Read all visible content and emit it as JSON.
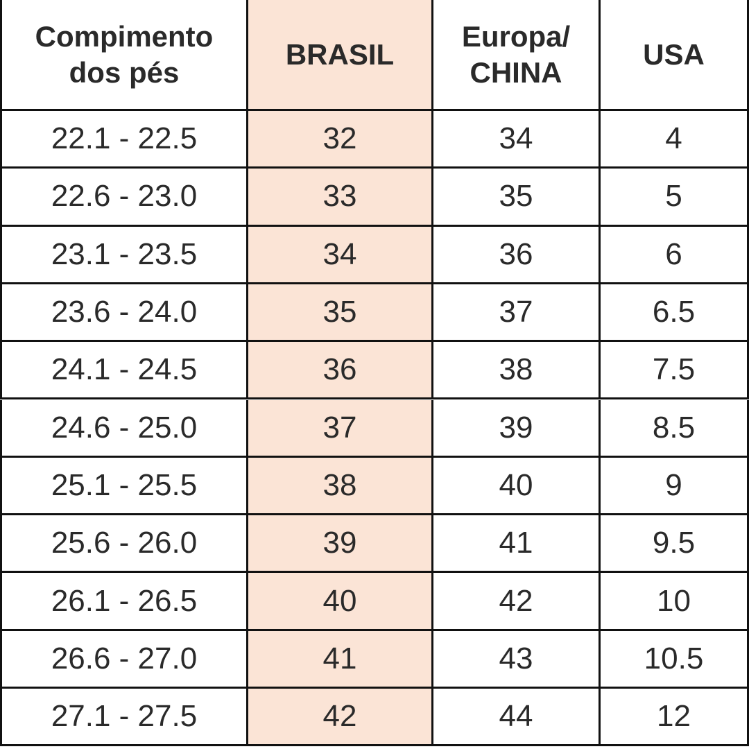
{
  "table": {
    "header": [
      [
        "Compimento",
        "dos pés"
      ],
      [
        "BRASIL"
      ],
      [
        "Europa/",
        "CHINA"
      ],
      [
        "USA"
      ]
    ],
    "rows": [
      [
        "22.1 - 22.5",
        "32",
        "34",
        "4"
      ],
      [
        "22.6 - 23.0",
        "33",
        "35",
        "5"
      ],
      [
        "23.1 - 23.5",
        "34",
        "36",
        "6"
      ],
      [
        "23.6 - 24.0",
        "35",
        "37",
        "6.5"
      ],
      [
        "24.1 - 24.5",
        "36",
        "38",
        "7.5"
      ],
      [
        "24.6 - 25.0",
        "37",
        "39",
        "8.5"
      ],
      [
        "25.1 - 25.5",
        "38",
        "40",
        "9"
      ],
      [
        "25.6 - 26.0",
        "39",
        "41",
        "9.5"
      ],
      [
        "26.1 - 26.5",
        "40",
        "42",
        "10"
      ],
      [
        "26.6 - 27.0",
        "41",
        "43",
        "10.5"
      ],
      [
        "27.1 - 27.5",
        "42",
        "44",
        "12"
      ]
    ]
  }
}
